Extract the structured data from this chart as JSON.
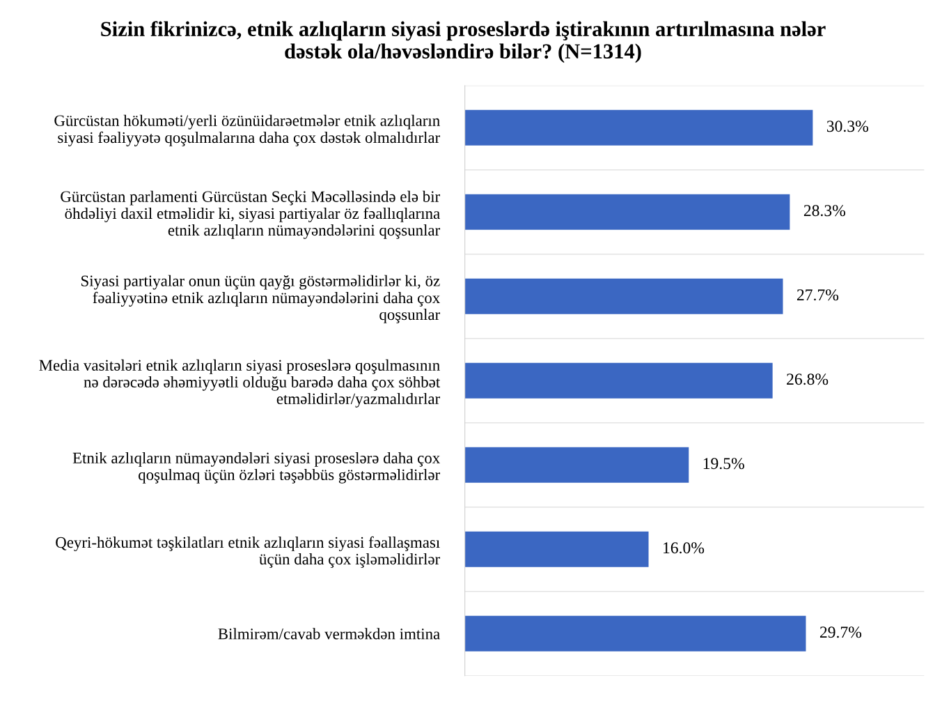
{
  "chart_data": {
    "type": "bar",
    "orientation": "horizontal",
    "title": "Sizin fikrinizcə, etnik azlıqların siyasi proseslərdə iştirakının artırılmasına nələr\ndəstək ola/həvəsləndirə bilər? (N=1314)",
    "categories": [
      "Gürcüstan hökuməti/yerli özünüidarəetmələr etnik azlıqların\nsiyasi fəaliyyətə qoşulmalarına daha çox dəstək olmalıdırlar",
      "Gürcüstan parlamenti Gürcüstan Seçki Məcəlləsində elə bir\nöhdəliyi daxil etməlidir ki, siyasi partiyalar öz fəallıqlarına\netnik azlıqların nümayəndələrini qoşsunlar",
      "Siyasi partiyalar onun üçün qayğı göstərməlidirlər ki, öz\nfəaliyyətinə etnik azlıqların nümayəndələrini daha çox\nqoşsunlar",
      "Media vasitələri etnik azlıqların siyasi proseslərə qoşulmasının\nnə dərəcədə əhəmiyyətli olduğu barədə daha çox söhbət\netməlidirlər/yazmalıdırlar",
      "Etnik azlıqların nümayəndələri siyasi proseslərə daha çox\nqoşulmaq üçün özləri təşəbbüs göstərməlidirlər",
      "Qeyri-hökumət təşkilatları etnik azlıqların siyasi fəallaşması\nüçün daha çox işləməlidirlər",
      "Bilmirəm/cavab verməkdən imtina"
    ],
    "values": [
      30.3,
      28.3,
      27.7,
      26.8,
      19.5,
      16.0,
      29.7
    ],
    "value_labels": [
      "30.3%",
      "28.3%",
      "27.7%",
      "26.8%",
      "19.5%",
      "16.0%",
      "29.7%"
    ],
    "color": "#3b67c2",
    "xlim": [
      0,
      40
    ],
    "tick_labels": "y",
    "grid": "y"
  }
}
